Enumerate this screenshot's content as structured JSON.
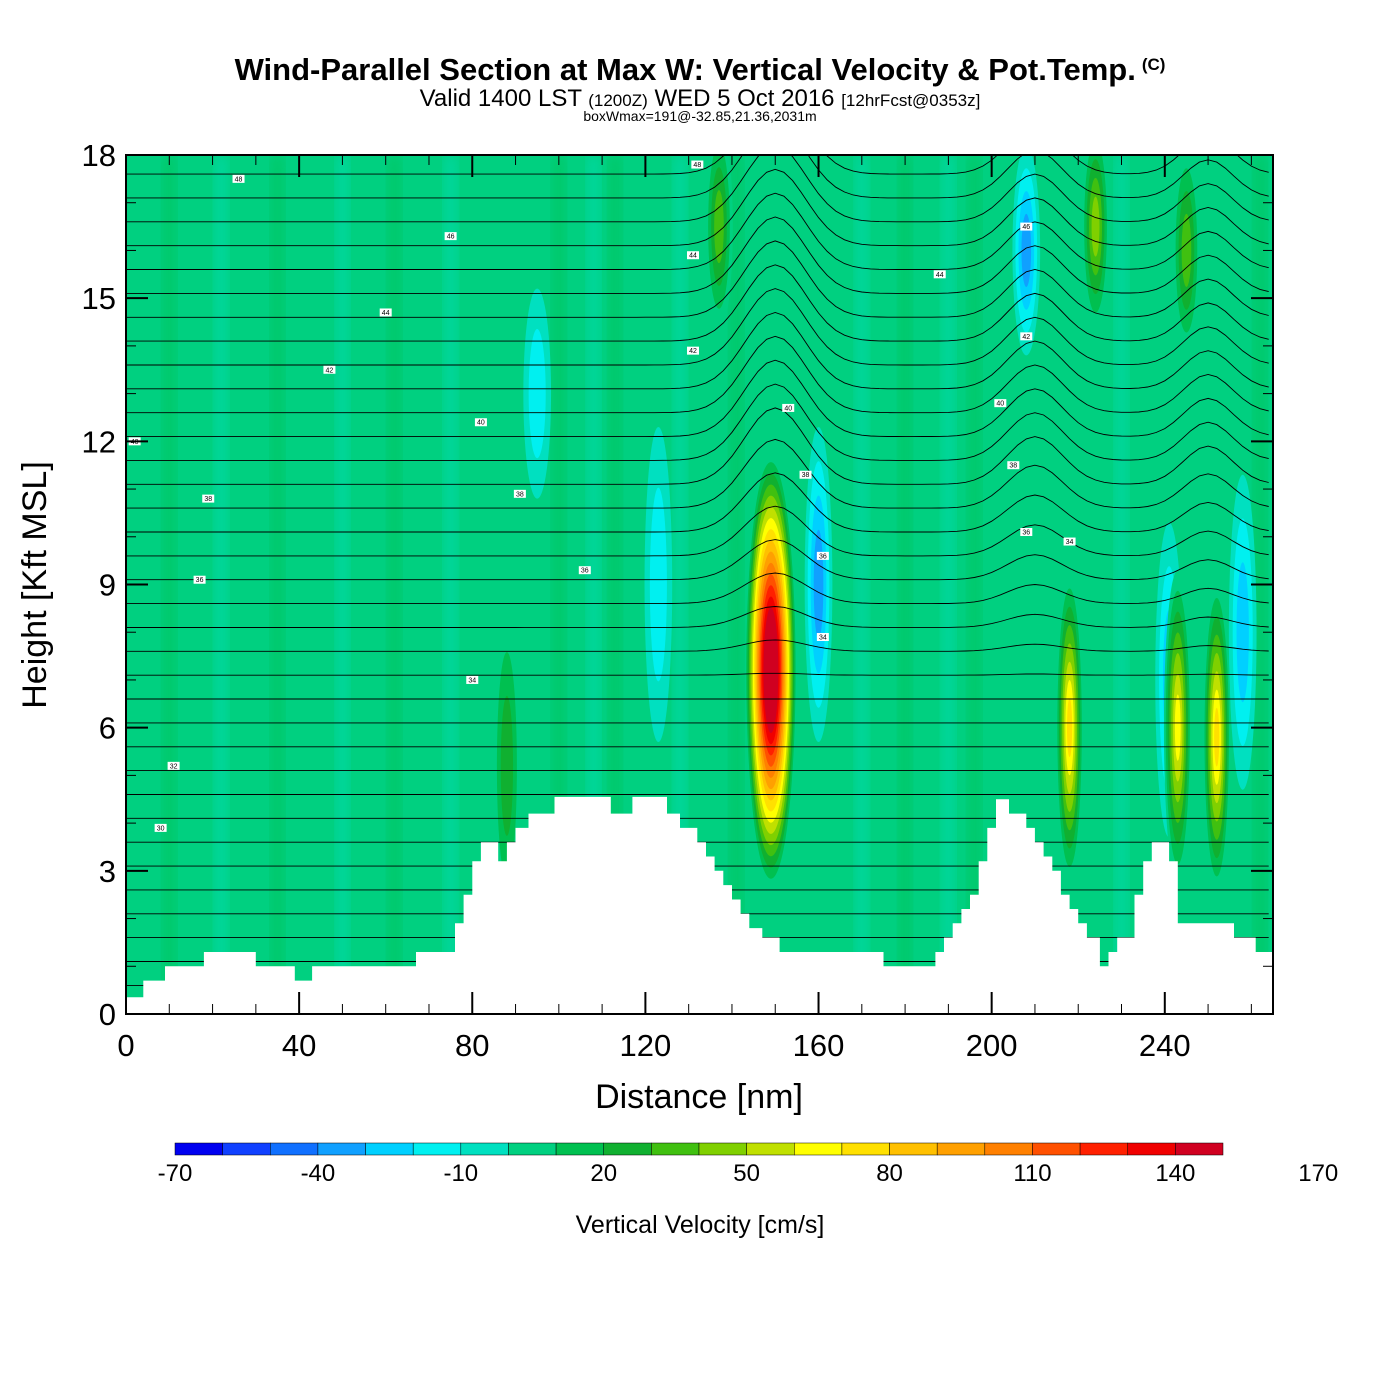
{
  "header": {
    "title": "Wind-Parallel Section at Max W: Vertical Velocity & Pot.Temp.",
    "title_mark": "(C)",
    "valid_prefix": "Valid 1400 LST",
    "valid_utc": "(1200Z)",
    "valid_date": "WED 5 Oct 2016",
    "forecast": "[12hrFcst@0353z]",
    "boxinfo": "boxWmax=191@-32.85,21.36,2031m"
  },
  "chart_data": {
    "type": "heatmap",
    "xlabel": "Distance [nm]",
    "ylabel": "Height [Kft MSL]",
    "xlim": [
      0,
      265
    ],
    "ylim": [
      0,
      18
    ],
    "x_ticks": [
      0,
      40,
      80,
      120,
      160,
      200,
      240
    ],
    "y_ticks": [
      0,
      3,
      6,
      9,
      12,
      15,
      18
    ],
    "colorbar": {
      "label": "Vertical Velocity [cm/s]",
      "levels_min": -70,
      "levels_step": 10,
      "tick_labels": [
        "-70",
        "-40",
        "-10",
        "20",
        "50",
        "80",
        "110",
        "140",
        "170"
      ],
      "colors": [
        "#0000f0",
        "#1040ff",
        "#1070ff",
        "#10a0ff",
        "#00d0ff",
        "#00f0f0",
        "#00e0c0",
        "#00d080",
        "#00c050",
        "#10b030",
        "#40c010",
        "#80d000",
        "#c0e000",
        "#ffff00",
        "#ffe000",
        "#ffc000",
        "#ffa000",
        "#ff8000",
        "#ff5000",
        "#ff2000",
        "#f00000",
        "#d00020"
      ]
    },
    "terrain_kft": [
      [
        0,
        0.35
      ],
      [
        4,
        0.35
      ],
      [
        4,
        0.7
      ],
      [
        9,
        0.7
      ],
      [
        9,
        1.0
      ],
      [
        18,
        1.0
      ],
      [
        18,
        1.3
      ],
      [
        30,
        1.3
      ],
      [
        30,
        1.0
      ],
      [
        39,
        1.0
      ],
      [
        39,
        0.7
      ],
      [
        43,
        0.7
      ],
      [
        43,
        1.0
      ],
      [
        67,
        1.0
      ],
      [
        67,
        1.3
      ],
      [
        76,
        1.3
      ],
      [
        76,
        1.9
      ],
      [
        78,
        1.9
      ],
      [
        78,
        2.5
      ],
      [
        80,
        2.5
      ],
      [
        80,
        3.2
      ],
      [
        82,
        3.2
      ],
      [
        82,
        3.6
      ],
      [
        86,
        3.6
      ],
      [
        86,
        3.2
      ],
      [
        88,
        3.2
      ],
      [
        88,
        3.6
      ],
      [
        90,
        3.6
      ],
      [
        90,
        3.9
      ],
      [
        93,
        3.9
      ],
      [
        93,
        4.2
      ],
      [
        99,
        4.2
      ],
      [
        99,
        4.55
      ],
      [
        112,
        4.55
      ],
      [
        112,
        4.2
      ],
      [
        117,
        4.2
      ],
      [
        117,
        4.55
      ],
      [
        125,
        4.55
      ],
      [
        125,
        4.2
      ],
      [
        128,
        4.2
      ],
      [
        128,
        3.9
      ],
      [
        132,
        3.9
      ],
      [
        132,
        3.6
      ],
      [
        134,
        3.6
      ],
      [
        134,
        3.3
      ],
      [
        136,
        3.3
      ],
      [
        136,
        3.0
      ],
      [
        138,
        3.0
      ],
      [
        138,
        2.7
      ],
      [
        140,
        2.7
      ],
      [
        140,
        2.4
      ],
      [
        142,
        2.4
      ],
      [
        142,
        2.1
      ],
      [
        144,
        2.1
      ],
      [
        144,
        1.8
      ],
      [
        147,
        1.8
      ],
      [
        147,
        1.6
      ],
      [
        151,
        1.6
      ],
      [
        151,
        1.3
      ],
      [
        175,
        1.3
      ],
      [
        175,
        1.0
      ],
      [
        187,
        1.0
      ],
      [
        187,
        1.3
      ],
      [
        189,
        1.3
      ],
      [
        189,
        1.6
      ],
      [
        191,
        1.6
      ],
      [
        191,
        1.9
      ],
      [
        193,
        1.9
      ],
      [
        193,
        2.2
      ],
      [
        195,
        2.2
      ],
      [
        195,
        2.5
      ],
      [
        197,
        2.5
      ],
      [
        197,
        3.2
      ],
      [
        199,
        3.2
      ],
      [
        199,
        3.9
      ],
      [
        201,
        3.9
      ],
      [
        201,
        4.5
      ],
      [
        204,
        4.5
      ],
      [
        204,
        4.2
      ],
      [
        208,
        4.2
      ],
      [
        208,
        3.9
      ],
      [
        210,
        3.9
      ],
      [
        210,
        3.6
      ],
      [
        212,
        3.6
      ],
      [
        212,
        3.3
      ],
      [
        214,
        3.3
      ],
      [
        214,
        3.0
      ],
      [
        216,
        3.0
      ],
      [
        216,
        2.5
      ],
      [
        218,
        2.5
      ],
      [
        218,
        2.2
      ],
      [
        220,
        2.2
      ],
      [
        220,
        1.9
      ],
      [
        222,
        1.9
      ],
      [
        222,
        1.6
      ],
      [
        225,
        1.6
      ],
      [
        225,
        1.0
      ],
      [
        227,
        1.0
      ],
      [
        227,
        1.3
      ],
      [
        229,
        1.3
      ],
      [
        229,
        1.6
      ],
      [
        233,
        1.6
      ],
      [
        233,
        2.5
      ],
      [
        235,
        2.5
      ],
      [
        235,
        3.2
      ],
      [
        237,
        3.2
      ],
      [
        237,
        3.6
      ],
      [
        241,
        3.6
      ],
      [
        241,
        3.2
      ],
      [
        243,
        3.2
      ],
      [
        243,
        1.9
      ],
      [
        256,
        1.9
      ],
      [
        256,
        1.6
      ],
      [
        261,
        1.6
      ],
      [
        261,
        1.3
      ],
      [
        265,
        1.3
      ]
    ],
    "updrafts": [
      {
        "x": 149,
        "z": 7.2,
        "peak_cm_s": 191
      },
      {
        "x": 218,
        "z": 6.0,
        "peak_cm_s": 80
      },
      {
        "x": 252,
        "z": 5.8,
        "peak_cm_s": 80
      },
      {
        "x": 243,
        "z": 6.0,
        "peak_cm_s": 70
      },
      {
        "x": 88,
        "z": 5.2,
        "peak_cm_s": 35
      },
      {
        "x": 137,
        "z": 16.5,
        "peak_cm_s": 45
      },
      {
        "x": 224,
        "z": 16.5,
        "peak_cm_s": 55
      },
      {
        "x": 245,
        "z": 16.0,
        "peak_cm_s": 45
      }
    ],
    "downdrafts": [
      {
        "x": 160,
        "z": 9.0,
        "peak_cm_s": -45
      },
      {
        "x": 208,
        "z": 16.0,
        "peak_cm_s": -45
      },
      {
        "x": 241,
        "z": 7.0,
        "peak_cm_s": -35
      },
      {
        "x": 258,
        "z": 8.0,
        "peak_cm_s": -35
      },
      {
        "x": 123,
        "z": 9.0,
        "peak_cm_s": -25
      },
      {
        "x": 95,
        "z": 13.0,
        "peak_cm_s": -25
      }
    ],
    "theta_contour_labels": [
      {
        "text": "30",
        "x": 8,
        "z": 3.9
      },
      {
        "text": "32",
        "x": 11,
        "z": 5.2
      },
      {
        "text": "34",
        "x": 80,
        "z": 7.0
      },
      {
        "text": "36",
        "x": 17,
        "z": 9.1
      },
      {
        "text": "36",
        "x": 106,
        "z": 9.3
      },
      {
        "text": "38",
        "x": 19,
        "z": 10.8
      },
      {
        "text": "38",
        "x": 91,
        "z": 10.9
      },
      {
        "text": "40",
        "x": 2,
        "z": 12.0
      },
      {
        "text": "40",
        "x": 82,
        "z": 12.4
      },
      {
        "text": "42",
        "x": 47,
        "z": 13.5
      },
      {
        "text": "44",
        "x": 60,
        "z": 14.7
      },
      {
        "text": "44",
        "x": 188,
        "z": 15.5
      },
      {
        "text": "46",
        "x": 75,
        "z": 16.3
      },
      {
        "text": "48",
        "x": 26,
        "z": 17.5
      },
      {
        "text": "48",
        "x": 132,
        "z": 17.8
      },
      {
        "text": "44",
        "x": 131,
        "z": 15.9
      },
      {
        "text": "42",
        "x": 131,
        "z": 13.9
      },
      {
        "text": "40",
        "x": 153,
        "z": 12.7
      },
      {
        "text": "38",
        "x": 157,
        "z": 11.3
      },
      {
        "text": "36",
        "x": 161,
        "z": 9.6
      },
      {
        "text": "34",
        "x": 161,
        "z": 7.9
      },
      {
        "text": "40",
        "x": 202,
        "z": 12.8
      },
      {
        "text": "38",
        "x": 205,
        "z": 11.5
      },
      {
        "text": "36",
        "x": 208,
        "z": 10.1
      },
      {
        "text": "34",
        "x": 218,
        "z": 9.9
      },
      {
        "text": "42",
        "x": 208,
        "z": 14.2
      },
      {
        "text": "46",
        "x": 208,
        "z": 16.5
      }
    ]
  }
}
